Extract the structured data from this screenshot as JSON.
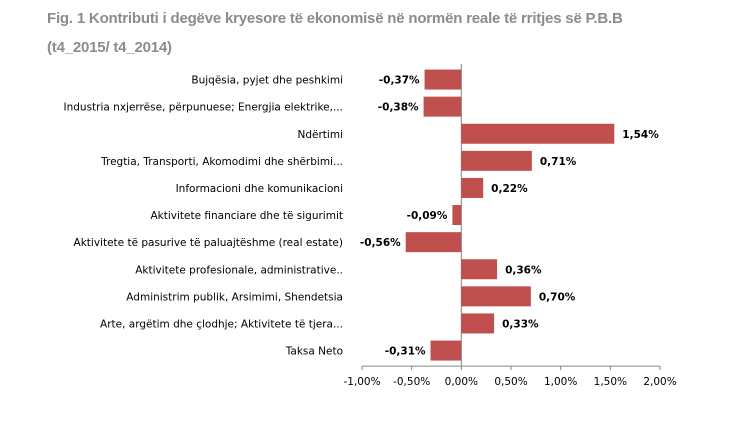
{
  "chart_data": {
    "type": "bar",
    "orientation": "horizontal",
    "title": "Fig. 1 Kontributi i degëve kryesore të ekonomisë në normën reale të rritjes së P.B.B",
    "subtitle": "(t4_2015/ t4_2014)",
    "categories": [
      "Bujqësia, pyjet dhe peshkimi",
      "Industria nxjerrëse, përpunuese; Energjia elektrike,...",
      "Ndërtimi",
      "Tregtia, Transporti, Akomodimi dhe shërbimi...",
      "Informacioni dhe komunikacioni",
      "Aktivitete financiare dhe të sigurimit",
      "Aktivitete të pasurive të paluajtëshme (real estate)",
      "Aktivitete profesionale, administrative..",
      "Administrim publik, Arsimimi, Shendetsia",
      "Arte, argëtim dhe çlodhje; Aktivitete të tjera...",
      "Taksa Neto"
    ],
    "values": [
      -0.37,
      -0.38,
      1.54,
      0.71,
      0.22,
      -0.09,
      -0.56,
      0.36,
      0.7,
      0.33,
      -0.31
    ],
    "data_labels": [
      "-0,37%",
      "-0,38%",
      "1,54%",
      "0,71%",
      "0,22%",
      "-0,09%",
      "-0,56%",
      "0,36%",
      "0,70%",
      "0,33%",
      "-0,31%"
    ],
    "xlim": [
      -1.0,
      2.0
    ],
    "x_ticks": [
      -1.0,
      -0.5,
      0.0,
      0.5,
      1.0,
      1.5,
      2.0
    ],
    "x_tick_labels": [
      "-1,00%",
      "-0,50%",
      "0,00%",
      "0,50%",
      "1,00%",
      "1,50%",
      "2,00%"
    ],
    "bar_color": "#c0504d",
    "grid": false,
    "legend": "none"
  }
}
